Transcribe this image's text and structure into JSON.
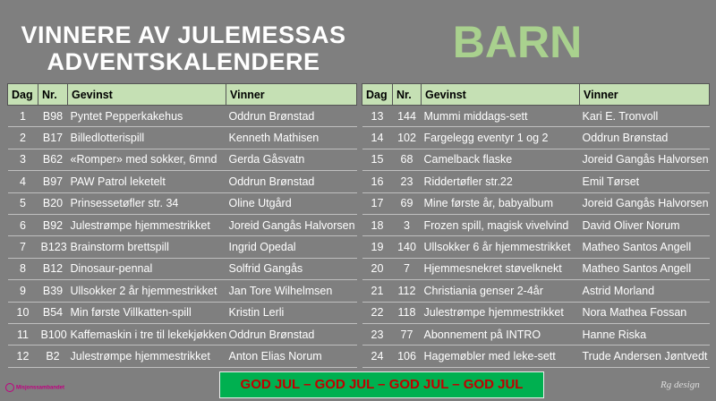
{
  "header": {
    "title_line1": "VINNERE AV JULEMESSAS",
    "title_line2": "ADVENTSKALENDERE",
    "group": "BARN"
  },
  "tables": [
    {
      "columns": [
        "Dag",
        "Nr.",
        "Gevinst",
        "Vinner"
      ],
      "rows": [
        [
          1,
          "B98",
          "Pyntet Pepperkakehus",
          "Oddrun Brønstad"
        ],
        [
          2,
          "B17",
          "Billedlotterispill",
          "Kenneth Mathisen"
        ],
        [
          3,
          "B62",
          "«Romper» med sokker, 6mnd",
          "Gerda Gåsvatn"
        ],
        [
          4,
          "B97",
          "PAW Patrol leketelt",
          "Oddrun Brønstad"
        ],
        [
          5,
          "B20",
          "Prinsessetøfler str. 34",
          "Oline Utgård"
        ],
        [
          6,
          "B92",
          "Julestrømpe hjemmestrikket",
          "Joreid Gangås Halvorsen"
        ],
        [
          7,
          "B123",
          "Brainstorm brettspill",
          "Ingrid Opedal"
        ],
        [
          8,
          "B12",
          "Dinosaur-pennal",
          "Solfrid Gangås"
        ],
        [
          9,
          "B39",
          "Ullsokker 2 år hjemmestrikket",
          "Jan Tore Wilhelmsen"
        ],
        [
          10,
          "B54",
          "Min første Villkatten-spill",
          "Kristin Lerli"
        ],
        [
          11,
          "B100",
          "Kaffemaskin i tre til lekekjøkken",
          "Oddrun Brønstad"
        ],
        [
          12,
          "B2",
          "Julestrømpe hjemmestrikket",
          "Anton Elias Norum"
        ]
      ]
    },
    {
      "columns": [
        "Dag",
        "Nr.",
        "Gevinst",
        "Vinner"
      ],
      "rows": [
        [
          13,
          144,
          "Mummi middags-sett",
          "Kari E. Tronvoll"
        ],
        [
          14,
          102,
          "Fargelegg eventyr 1 og 2",
          "Oddrun Brønstad"
        ],
        [
          15,
          68,
          "Camelback flaske",
          "Joreid Gangås Halvorsen"
        ],
        [
          16,
          23,
          "Riddertøfler str.22",
          "Emil Tørset"
        ],
        [
          17,
          69,
          "Mine første år, babyalbum",
          "Joreid Gangås Halvorsen"
        ],
        [
          18,
          3,
          "Frozen spill, magisk vivelvind",
          "David Oliver Norum"
        ],
        [
          19,
          140,
          "Ullsokker 6 år hjemmestrikket",
          "Matheo Santos Angell"
        ],
        [
          20,
          7,
          "Hjemmesnekret støvelknekt",
          "Matheo Santos Angell"
        ],
        [
          21,
          112,
          "Christiania genser 2-4år",
          "Astrid Morland"
        ],
        [
          22,
          118,
          "Julestrømpe hjemmestrikket",
          "Nora Mathea Fossan"
        ],
        [
          23,
          77,
          "Abonnement på INTRO",
          "Hanne Riska"
        ],
        [
          24,
          106,
          "Hagemøbler med leke-sett",
          "Trude Andersen Jøntvedt"
        ]
      ]
    }
  ],
  "footer": {
    "banner": "GOD JUL – GOD JUL – GOD JUL – GOD JUL",
    "logo": "Misjonssambandet",
    "signature": "Rg design"
  }
}
